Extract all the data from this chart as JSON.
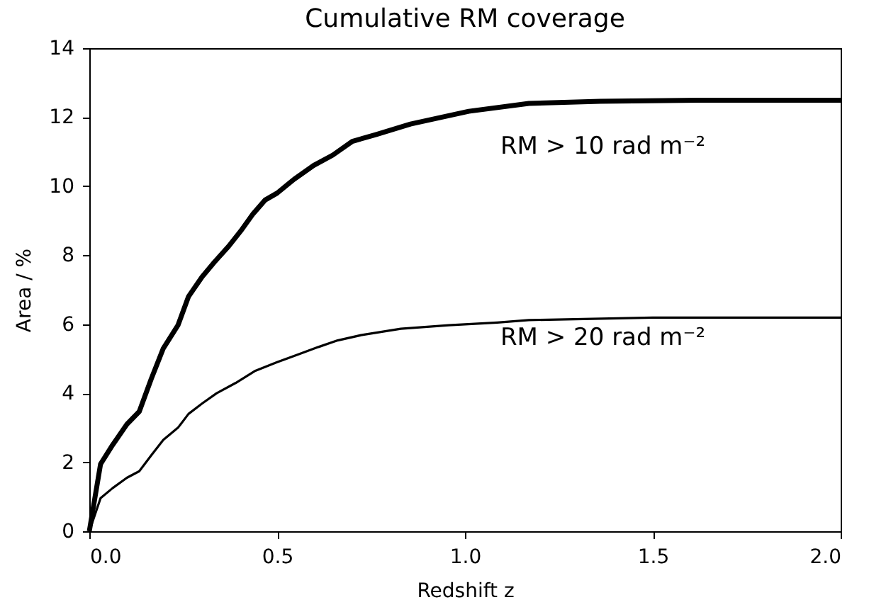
{
  "chart_data": {
    "type": "line",
    "title": "Cumulative RM coverage",
    "xlabel": "Redshift z",
    "ylabel": "Area / %",
    "xlim": [
      0,
      2
    ],
    "ylim": [
      0,
      14
    ],
    "xticks": [
      {
        "value": 0,
        "label": "0.0"
      },
      {
        "value": 0.5,
        "label": "0.5"
      },
      {
        "value": 1,
        "label": "1.0"
      },
      {
        "value": 1.5,
        "label": "1.5"
      },
      {
        "value": 2,
        "label": "2.0"
      }
    ],
    "yticks": [
      0,
      2,
      4,
      6,
      8,
      10,
      12,
      14
    ],
    "grid": false,
    "series": [
      {
        "color": "#000000",
        "x": [
          0,
          0.03,
          0.062,
          0.1,
          0.133,
          0.165,
          0.197,
          0.236,
          0.264,
          0.3,
          0.333,
          0.371,
          0.403,
          0.436,
          0.468,
          0.5,
          0.545,
          0.597,
          0.648,
          0.7,
          0.764,
          0.855,
          1.01,
          1.17,
          1.36,
          1.62,
          2.0
        ],
        "values": [
          0,
          1.95,
          2.5,
          3.1,
          3.47,
          4.42,
          5.3,
          5.97,
          6.8,
          7.37,
          7.8,
          8.26,
          8.7,
          9.2,
          9.6,
          9.8,
          10.2,
          10.6,
          10.9,
          11.3,
          11.5,
          11.8,
          12.17,
          12.4,
          12.46,
          12.49,
          12.49
        ]
      },
      {
        "color": "#000000",
        "x": [
          0,
          0.03,
          0.062,
          0.1,
          0.133,
          0.165,
          0.197,
          0.236,
          0.264,
          0.3,
          0.339,
          0.39,
          0.442,
          0.5,
          0.558,
          0.61,
          0.661,
          0.726,
          0.829,
          0.957,
          1.086,
          1.17,
          1.5,
          2.0
        ],
        "values": [
          0,
          0.96,
          1.25,
          1.55,
          1.74,
          2.2,
          2.65,
          3.0,
          3.4,
          3.7,
          4.0,
          4.3,
          4.65,
          4.9,
          5.13,
          5.34,
          5.53,
          5.69,
          5.87,
          5.97,
          6.05,
          6.12,
          6.19,
          6.19
        ]
      }
    ],
    "annotations": [
      "RM > 10 rad m⁻²",
      "RM > 20 rad m⁻²"
    ]
  }
}
